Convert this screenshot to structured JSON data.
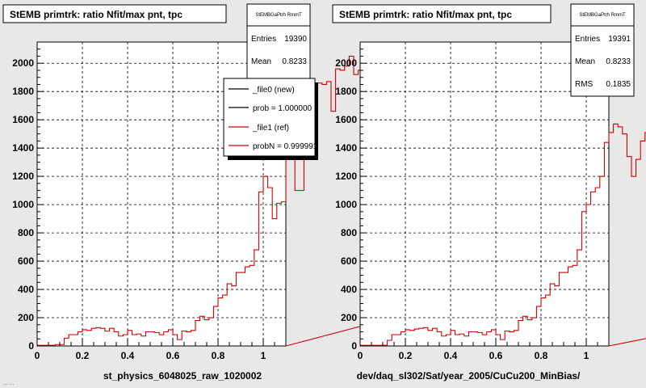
{
  "canvas_bg": "#e8e8e8",
  "plot_bg": "#ffffff",
  "colors": {
    "new": "#000000",
    "ref": "#cc0000"
  },
  "footer": "...  ...",
  "chart_data": [
    {
      "type": "histogram",
      "title": "StEMB primtrk: ratio Nfit/max pnt, tpc",
      "xlabel": "st_physics_6048025_raw_1020002",
      "ylabel": "",
      "xlim": [
        0,
        1.1
      ],
      "ylim": [
        0,
        2150
      ],
      "x_ticks": [
        "0",
        "0.2",
        "0.4",
        "0.6",
        "0.8",
        "1"
      ],
      "x_tick_values": [
        0,
        0.2,
        0.4,
        0.6,
        0.8,
        1
      ],
      "y_ticks": [
        "0",
        "200",
        "400",
        "600",
        "800",
        "1000",
        "1200",
        "1400",
        "1600",
        "1800",
        "2000"
      ],
      "y_tick_values": [
        0,
        200,
        400,
        600,
        800,
        1000,
        1200,
        1400,
        1600,
        1800,
        2000
      ],
      "grid": true,
      "bin_width": 0.02,
      "x_start": 0,
      "values": [
        5,
        5,
        5,
        5,
        10,
        10,
        55,
        80,
        80,
        100,
        115,
        110,
        125,
        130,
        125,
        105,
        125,
        100,
        70,
        80,
        110,
        80,
        85,
        70,
        100,
        100,
        95,
        80,
        100,
        115,
        80,
        45,
        105,
        100,
        110,
        180,
        210,
        185,
        200,
        280,
        340,
        360,
        440,
        425,
        520,
        520,
        560,
        570,
        680,
        1090,
        1200,
        1120,
        900,
        1010,
        1020,
        1550,
        1390,
        1100,
        1100,
        1400,
        1800,
        1820,
        1860,
        1850,
        1870,
        1660,
        1960,
        1950,
        1980,
        2050,
        1920,
        1950,
        2100,
        0,
        0,
        175,
        210,
        210,
        210,
        210
      ],
      "stats": {
        "header": "StEMBGaPtrh RmmT",
        "rows": [
          {
            "label": "Entries",
            "value": "19390"
          },
          {
            "label": "Mean",
            "value": "0.8233"
          }
        ]
      },
      "legend": [
        {
          "label": "_file0 (new)",
          "color": "#000000"
        },
        {
          "label": "prob = 1.000000",
          "color": "#000000"
        },
        {
          "label": "_file1 (ref)",
          "color": "#cc0000"
        },
        {
          "label": "probN = 0.999991",
          "color": "#cc0000"
        }
      ]
    },
    {
      "type": "histogram",
      "title": "StEMB primtrk: ratio Nfit/max pnt, tpc",
      "xlabel": "dev/daq_sl302/Sat/year_2005/CuCu200_MinBias/",
      "ylabel": "",
      "xlim": [
        0,
        1.1
      ],
      "ylim": [
        0,
        2150
      ],
      "x_ticks": [
        "0",
        "0.2",
        "0.4",
        "0.6",
        "0.8",
        "1"
      ],
      "x_tick_values": [
        0,
        0.2,
        0.4,
        0.6,
        0.8,
        1
      ],
      "y_ticks": [
        "0",
        "200",
        "400",
        "600",
        "800",
        "1000",
        "1200",
        "1400",
        "1600",
        "1800",
        "2000"
      ],
      "y_tick_values": [
        0,
        200,
        400,
        600,
        800,
        1000,
        1200,
        1400,
        1600,
        1800,
        2000
      ],
      "grid": true,
      "bin_width": 0.02,
      "x_start": 0,
      "values": [
        5,
        5,
        5,
        5,
        5,
        5,
        40,
        80,
        80,
        100,
        115,
        110,
        120,
        125,
        130,
        110,
        125,
        100,
        70,
        80,
        110,
        80,
        85,
        70,
        100,
        100,
        95,
        80,
        100,
        115,
        80,
        45,
        105,
        100,
        110,
        180,
        210,
        185,
        200,
        280,
        340,
        360,
        440,
        425,
        520,
        520,
        560,
        570,
        680,
        950,
        1000,
        1090,
        1120,
        1200,
        1440,
        1510,
        1570,
        1550,
        1500,
        1340,
        1200,
        1320,
        1450,
        1510,
        1580,
        1600,
        2000,
        2050,
        2100,
        0,
        0,
        175,
        210,
        210,
        210,
        210,
        180,
        200,
        180,
        160
      ],
      "stats": {
        "header": "StEMBGaPtrh RmmT",
        "rows": [
          {
            "label": "Entries",
            "value": "19391"
          },
          {
            "label": "Mean",
            "value": "0.8233"
          },
          {
            "label": "RMS",
            "value": "0.1835"
          }
        ]
      },
      "legend": []
    }
  ]
}
